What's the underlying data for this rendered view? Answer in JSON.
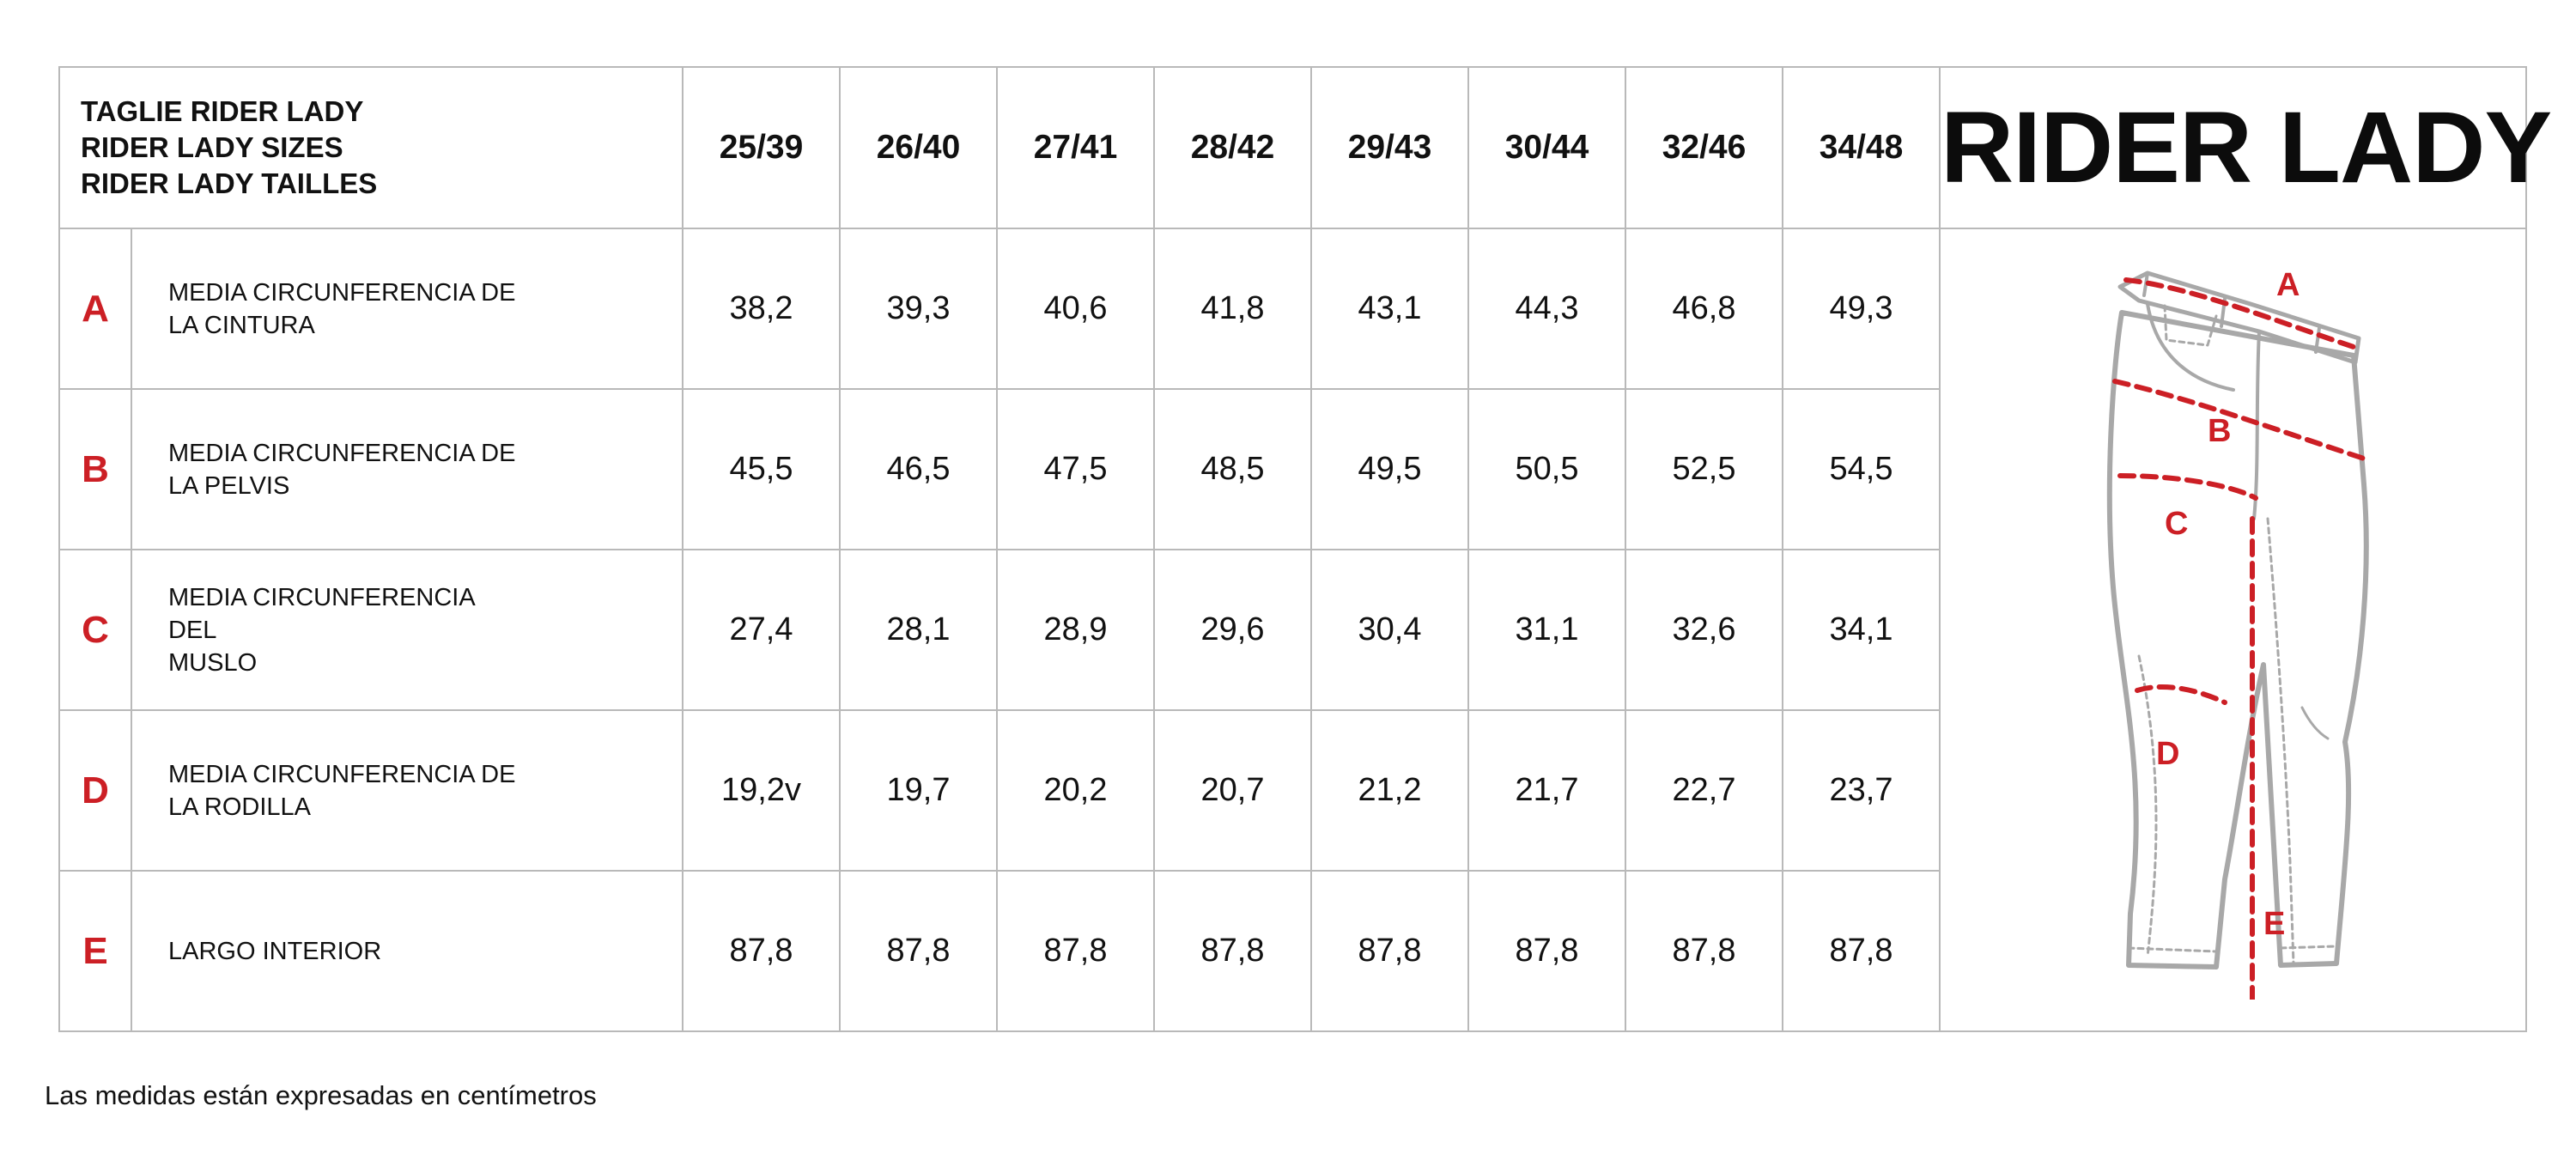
{
  "header": {
    "title_lines": [
      "TAGLIE RIDER LADY",
      "RIDER LADY SIZES",
      "RIDER LADY TAILLES"
    ],
    "sizes": [
      "25/39",
      "26/40",
      "27/41",
      "28/42",
      "29/43",
      "30/44",
      "32/46",
      "34/48"
    ],
    "brand_title": "RIDER LADY"
  },
  "rows": [
    {
      "letter": "A",
      "label_lines": [
        "MEDIA CIRCUNFERENCIA DE",
        "LA CINTURA"
      ],
      "values": [
        "38,2",
        "39,3",
        "40,6",
        "41,8",
        "43,1",
        "44,3",
        "46,8",
        "49,3"
      ]
    },
    {
      "letter": "B",
      "label_lines": [
        "MEDIA CIRCUNFERENCIA DE",
        "LA PELVIS"
      ],
      "values": [
        "45,5",
        "46,5",
        "47,5",
        "48,5",
        "49,5",
        "50,5",
        "52,5",
        "54,5"
      ]
    },
    {
      "letter": "C",
      "label_lines": [
        "MEDIA CIRCUNFERENCIA DEL",
        "MUSLO"
      ],
      "values": [
        "27,4",
        "28,1",
        "28,9",
        "29,6",
        "30,4",
        "31,1",
        "32,6",
        "34,1"
      ]
    },
    {
      "letter": "D",
      "label_lines": [
        "MEDIA CIRCUNFERENCIA DE",
        "LA RODILLA"
      ],
      "values": [
        "19,2v",
        "19,7",
        "20,2",
        "20,7",
        "21,2",
        "21,7",
        "22,7",
        "23,7"
      ]
    },
    {
      "letter": "E",
      "label_lines": [
        "LARGO INTERIOR"
      ],
      "values": [
        "87,8",
        "87,8",
        "87,8",
        "87,8",
        "87,8",
        "87,8",
        "87,8",
        "87,8"
      ]
    }
  ],
  "diagram": {
    "marker_labels": [
      "A",
      "B",
      "C",
      "D",
      "E"
    ],
    "accent_color": "#cc1f25",
    "outline_color": "#a8a8a8"
  },
  "footnote": "Las medidas están expresadas en centímetros"
}
